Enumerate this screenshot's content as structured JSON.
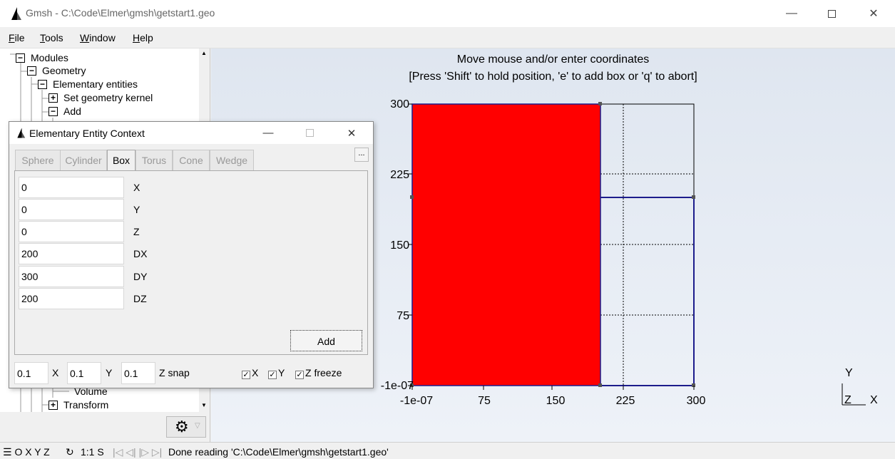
{
  "window": {
    "title": "Gmsh - C:\\Code\\Elmer\\gmsh\\getstart1.geo"
  },
  "menu": [
    {
      "key": "F",
      "rest": "ile"
    },
    {
      "key": "T",
      "rest": "ools"
    },
    {
      "key": "W",
      "rest": "indow"
    },
    {
      "key": "H",
      "rest": "elp"
    }
  ],
  "tree": {
    "modules": "Modules",
    "geometry": "Geometry",
    "elementary": "Elementary entities",
    "set_kernel": "Set geometry kernel",
    "add": "Add",
    "volume": "Volume",
    "transform": "Transform"
  },
  "graphics": {
    "message_line1": "Move mouse and/or enter coordinates",
    "message_line2": "[Press 'Shift' to hold position, 'e' to add box or 'q' to abort]",
    "axis_y_label": "Y",
    "axis_z_label": "Z",
    "axis_x_label": "X",
    "x_ticks": [
      "-1e-07",
      "75",
      "150",
      "225",
      "300"
    ],
    "y_ticks": [
      "300",
      "225",
      "150",
      "75",
      "-1e-07"
    ],
    "box_fill_color": "#ff0000",
    "outline_color": "#1c1c8c"
  },
  "status": {
    "icons": "☰ O X Y Z",
    "scale": "1:1 S",
    "message": "Done reading 'C:\\Code\\Elmer\\gmsh\\getstart1.geo'"
  },
  "dialog": {
    "title": "Elementary Entity Context",
    "tabs": [
      "Sphere",
      "Cylinder",
      "Box",
      "Torus",
      "Cone",
      "Wedge"
    ],
    "active_tab": "Box",
    "more_label": "...",
    "fields": [
      {
        "label": "X",
        "value": "0"
      },
      {
        "label": "Y",
        "value": "0"
      },
      {
        "label": "Z",
        "value": "0"
      },
      {
        "label": "DX",
        "value": "200"
      },
      {
        "label": "DY",
        "value": "300"
      },
      {
        "label": "DZ",
        "value": "200"
      }
    ],
    "add_label": "Add",
    "snap": {
      "x_value": "0.1",
      "x_label": "X",
      "y_value": "0.1",
      "y_label": "Y",
      "z_value": "0.1",
      "z_label": "Z snap"
    },
    "freeze": {
      "x_label": "X",
      "x_checked": true,
      "y_label": "Y",
      "y_checked": true,
      "z_label": "Z freeze",
      "z_checked": true
    }
  }
}
